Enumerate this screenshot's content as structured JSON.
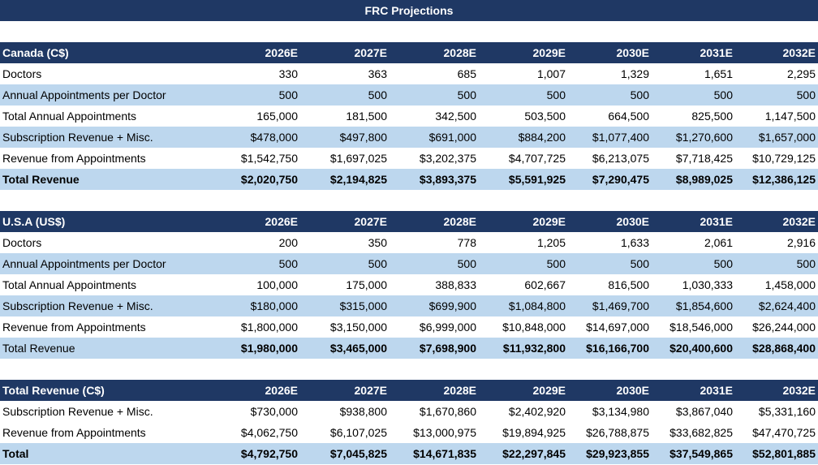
{
  "title": "FRC Projections",
  "years": [
    "2026E",
    "2027E",
    "2028E",
    "2029E",
    "2030E",
    "2031E",
    "2032E"
  ],
  "sections": [
    {
      "id": "canada",
      "header": "Canada (C$)",
      "rows": [
        {
          "label": "Doctors",
          "values": [
            "330",
            "363",
            "685",
            "1,007",
            "1,329",
            "1,651",
            "2,295"
          ]
        },
        {
          "label": "Annual Appointments per Doctor",
          "values": [
            "500",
            "500",
            "500",
            "500",
            "500",
            "500",
            "500"
          ]
        },
        {
          "label": "Total Annual Appointments",
          "values": [
            "165,000",
            "181,500",
            "342,500",
            "503,500",
            "664,500",
            "825,500",
            "1,147,500"
          ]
        },
        {
          "label": "Subscription Revenue + Misc.",
          "values": [
            "$478,000",
            "$497,800",
            "$691,000",
            "$884,200",
            "$1,077,400",
            "$1,270,600",
            "$1,657,000"
          ]
        },
        {
          "label": "Revenue from Appointments",
          "values": [
            "$1,542,750",
            "$1,697,025",
            "$3,202,375",
            "$4,707,725",
            "$6,213,075",
            "$7,718,425",
            "$10,729,125"
          ]
        },
        {
          "label": "Total Revenue",
          "values": [
            "$2,020,750",
            "$2,194,825",
            "$3,893,375",
            "$5,591,925",
            "$7,290,475",
            "$8,989,025",
            "$12,386,125"
          ]
        }
      ]
    },
    {
      "id": "usa",
      "header": "U.S.A (US$)",
      "rows": [
        {
          "label": "Doctors",
          "values": [
            "200",
            "350",
            "778",
            "1,205",
            "1,633",
            "2,061",
            "2,916"
          ]
        },
        {
          "label": "Annual Appointments per Doctor",
          "values": [
            "500",
            "500",
            "500",
            "500",
            "500",
            "500",
            "500"
          ]
        },
        {
          "label": "Total Annual Appointments",
          "values": [
            "100,000",
            "175,000",
            "388,833",
            "602,667",
            "816,500",
            "1,030,333",
            "1,458,000"
          ]
        },
        {
          "label": "Subscription Revenue + Misc.",
          "values": [
            "$180,000",
            "$315,000",
            "$699,900",
            "$1,084,800",
            "$1,469,700",
            "$1,854,600",
            "$2,624,400"
          ]
        },
        {
          "label": "Revenue from Appointments",
          "values": [
            "$1,800,000",
            "$3,150,000",
            "$6,999,000",
            "$10,848,000",
            "$14,697,000",
            "$18,546,000",
            "$26,244,000"
          ]
        },
        {
          "label": "Total Revenue",
          "values": [
            "$1,980,000",
            "$3,465,000",
            "$7,698,900",
            "$11,932,800",
            "$16,166,700",
            "$20,400,600",
            "$28,868,400"
          ]
        }
      ]
    },
    {
      "id": "total",
      "header": "Total Revenue (C$)",
      "rows": [
        {
          "label": "Subscription Revenue + Misc.",
          "values": [
            "$730,000",
            "$938,800",
            "$1,670,860",
            "$2,402,920",
            "$3,134,980",
            "$3,867,040",
            "$5,331,160"
          ]
        },
        {
          "label": "Revenue from Appointments",
          "values": [
            "$4,062,750",
            "$6,107,025",
            "$13,000,975",
            "$19,894,925",
            "$26,788,875",
            "$33,682,825",
            "$47,470,725"
          ]
        },
        {
          "label": "Total",
          "values": [
            "$4,792,750",
            "$7,045,825",
            "$14,671,835",
            "$22,297,845",
            "$29,923,855",
            "$37,549,865",
            "$52,801,885"
          ]
        }
      ]
    }
  ]
}
